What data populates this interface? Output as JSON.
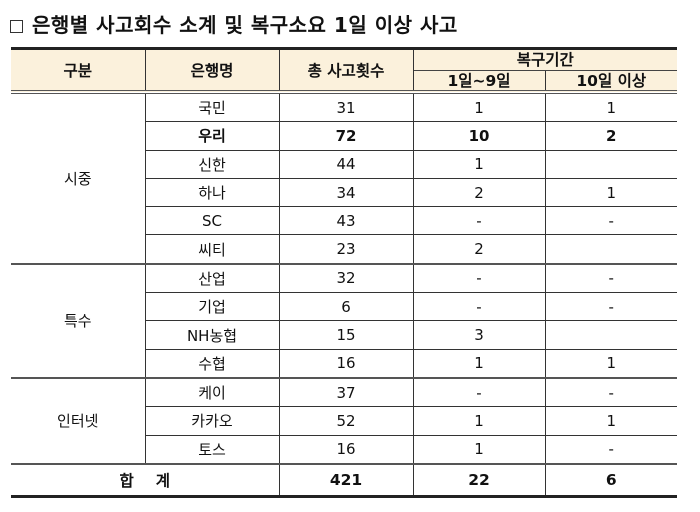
{
  "title": {
    "checkbox_symbol": "□",
    "text": "은행별 사고회수 소계 및 복구소요 1일 이상 사고"
  },
  "table": {
    "headers": {
      "category": "구분",
      "bank": "은행명",
      "total": "총 사고횟수",
      "recovery_period": "복구기간",
      "recovery_1_9": "1일~9일",
      "recovery_10_plus": "10일 이상"
    },
    "groups": [
      {
        "name": "시중",
        "rows": [
          {
            "bank": "국민",
            "total": "31",
            "d1_9": "1",
            "d10": "1",
            "bold": false
          },
          {
            "bank": "우리",
            "total": "72",
            "d1_9": "10",
            "d10": "2",
            "bold": true
          },
          {
            "bank": "신한",
            "total": "44",
            "d1_9": "1",
            "d10": "",
            "bold": false
          },
          {
            "bank": "하나",
            "total": "34",
            "d1_9": "2",
            "d10": "1",
            "bold": false
          },
          {
            "bank": "SC",
            "total": "43",
            "d1_9": "-",
            "d10": "-",
            "bold": false
          },
          {
            "bank": "씨티",
            "total": "23",
            "d1_9": "2",
            "d10": "",
            "bold": false
          }
        ]
      },
      {
        "name": "특수",
        "rows": [
          {
            "bank": "산업",
            "total": "32",
            "d1_9": "-",
            "d10": "-",
            "bold": false
          },
          {
            "bank": "기업",
            "total": "6",
            "d1_9": "-",
            "d10": "-",
            "bold": false
          },
          {
            "bank": "NH농협",
            "total": "15",
            "d1_9": "3",
            "d10": "",
            "bold": false
          },
          {
            "bank": "수협",
            "total": "16",
            "d1_9": "1",
            "d10": "1",
            "bold": false
          }
        ]
      },
      {
        "name": "인터넷",
        "rows": [
          {
            "bank": "케이",
            "total": "37",
            "d1_9": "-",
            "d10": "-",
            "bold": false
          },
          {
            "bank": "카카오",
            "total": "52",
            "d1_9": "1",
            "d10": "1",
            "bold": false
          },
          {
            "bank": "토스",
            "total": "16",
            "d1_9": "1",
            "d10": "-",
            "bold": false
          }
        ]
      }
    ],
    "footer": {
      "label": "합계",
      "total": "421",
      "d1_9": "22",
      "d10": "6"
    }
  }
}
